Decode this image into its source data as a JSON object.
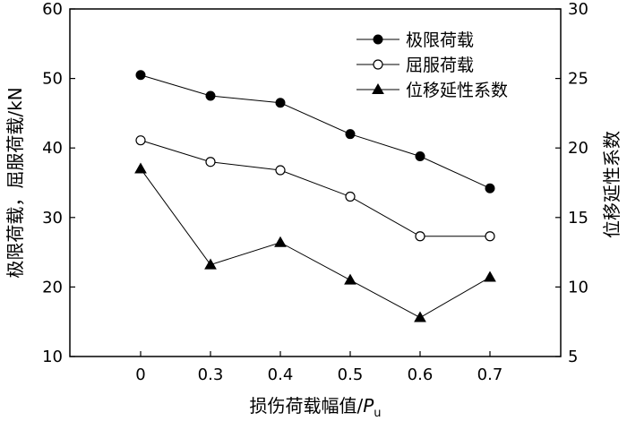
{
  "chart_data": {
    "type": "line",
    "x": [
      0,
      0.3,
      0.4,
      0.5,
      0.6,
      0.7
    ],
    "x_tick_labels": [
      "0",
      "0.3",
      "0.4",
      "0.5",
      "0.6",
      "0.7"
    ],
    "xlabel_main": "损伤荷载幅值/",
    "xlabel_italic": "P",
    "xlabel_sub": "u",
    "ylabel_left": "极限荷载，屈服荷载/kN",
    "ylabel_right": "位移延性系数",
    "ylim_left": [
      10,
      60
    ],
    "ylim_right": [
      5,
      30
    ],
    "y_ticks_left": [
      "10",
      "20",
      "30",
      "40",
      "50",
      "60"
    ],
    "y_ticks_right": [
      "5",
      "10",
      "15",
      "20",
      "25",
      "30"
    ],
    "grid": false,
    "legend_position": "top-right",
    "series": [
      {
        "name": "极限荷载",
        "axis": "left",
        "marker": "filled-circle",
        "values": [
          50.5,
          47.5,
          46.5,
          42.0,
          38.8,
          34.2
        ]
      },
      {
        "name": "屈服荷载",
        "axis": "left",
        "marker": "open-circle",
        "values": [
          41.1,
          38.0,
          36.8,
          33.0,
          27.3,
          27.3
        ]
      },
      {
        "name": "位移延性系数",
        "axis": "right",
        "marker": "filled-triangle",
        "values": [
          18.5,
          11.6,
          13.2,
          10.5,
          7.8,
          10.7
        ]
      }
    ]
  }
}
